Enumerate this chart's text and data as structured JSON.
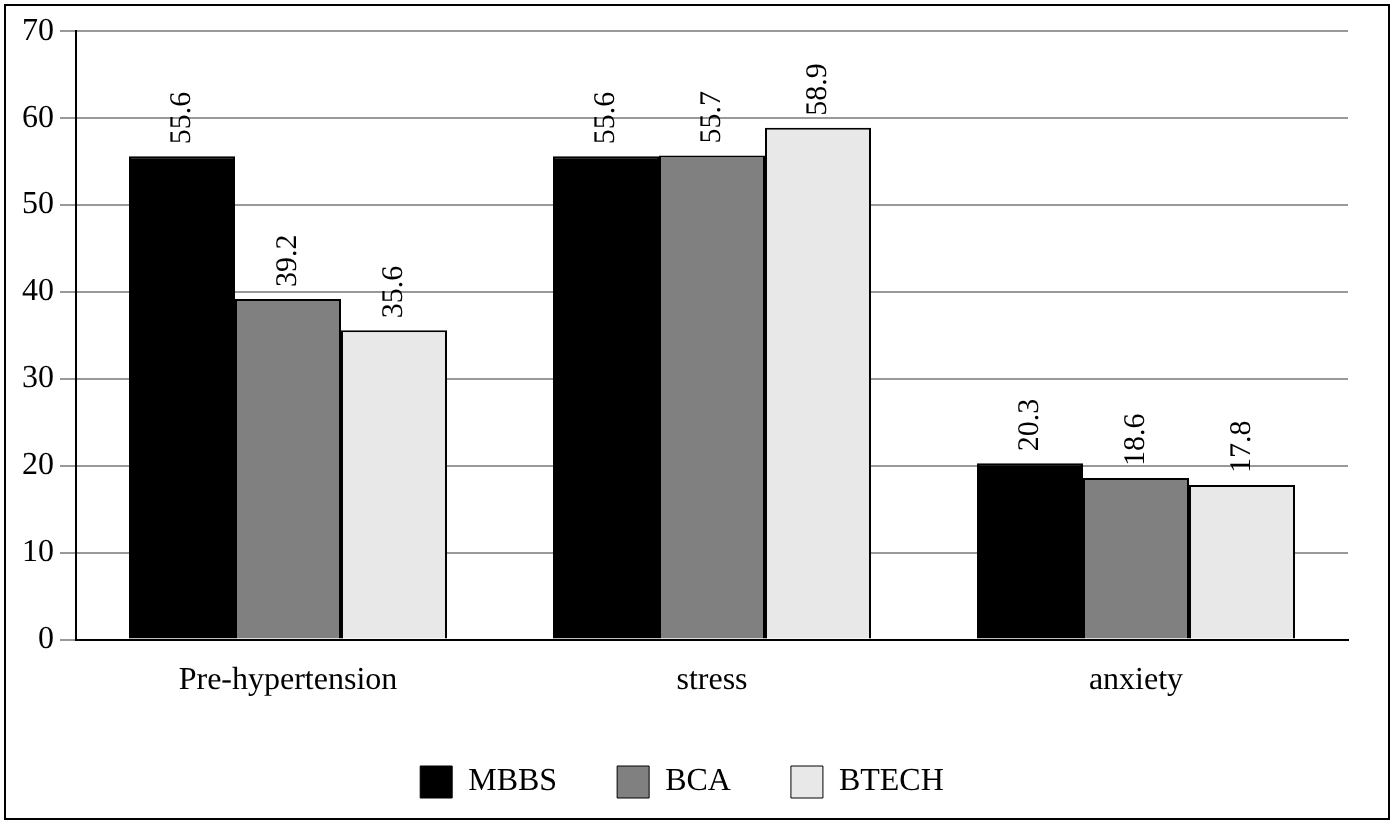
{
  "chart_data": {
    "type": "bar",
    "categories": [
      "Pre-hypertension",
      "stress",
      "anxiety"
    ],
    "series": [
      {
        "name": "MBBS",
        "color": "#000000",
        "values": [
          55.6,
          55.6,
          20.3
        ]
      },
      {
        "name": "BCA",
        "color": "#808080",
        "values": [
          39.2,
          55.7,
          18.6
        ]
      },
      {
        "name": "BTECH",
        "color": "#e8e8e8",
        "values": [
          35.6,
          58.9,
          17.8
        ]
      }
    ],
    "ylim": [
      0,
      70
    ],
    "yticks": [
      0,
      10,
      20,
      30,
      40,
      50,
      60,
      70
    ],
    "grid": "y",
    "legend": "bottom",
    "data_labels": true
  }
}
